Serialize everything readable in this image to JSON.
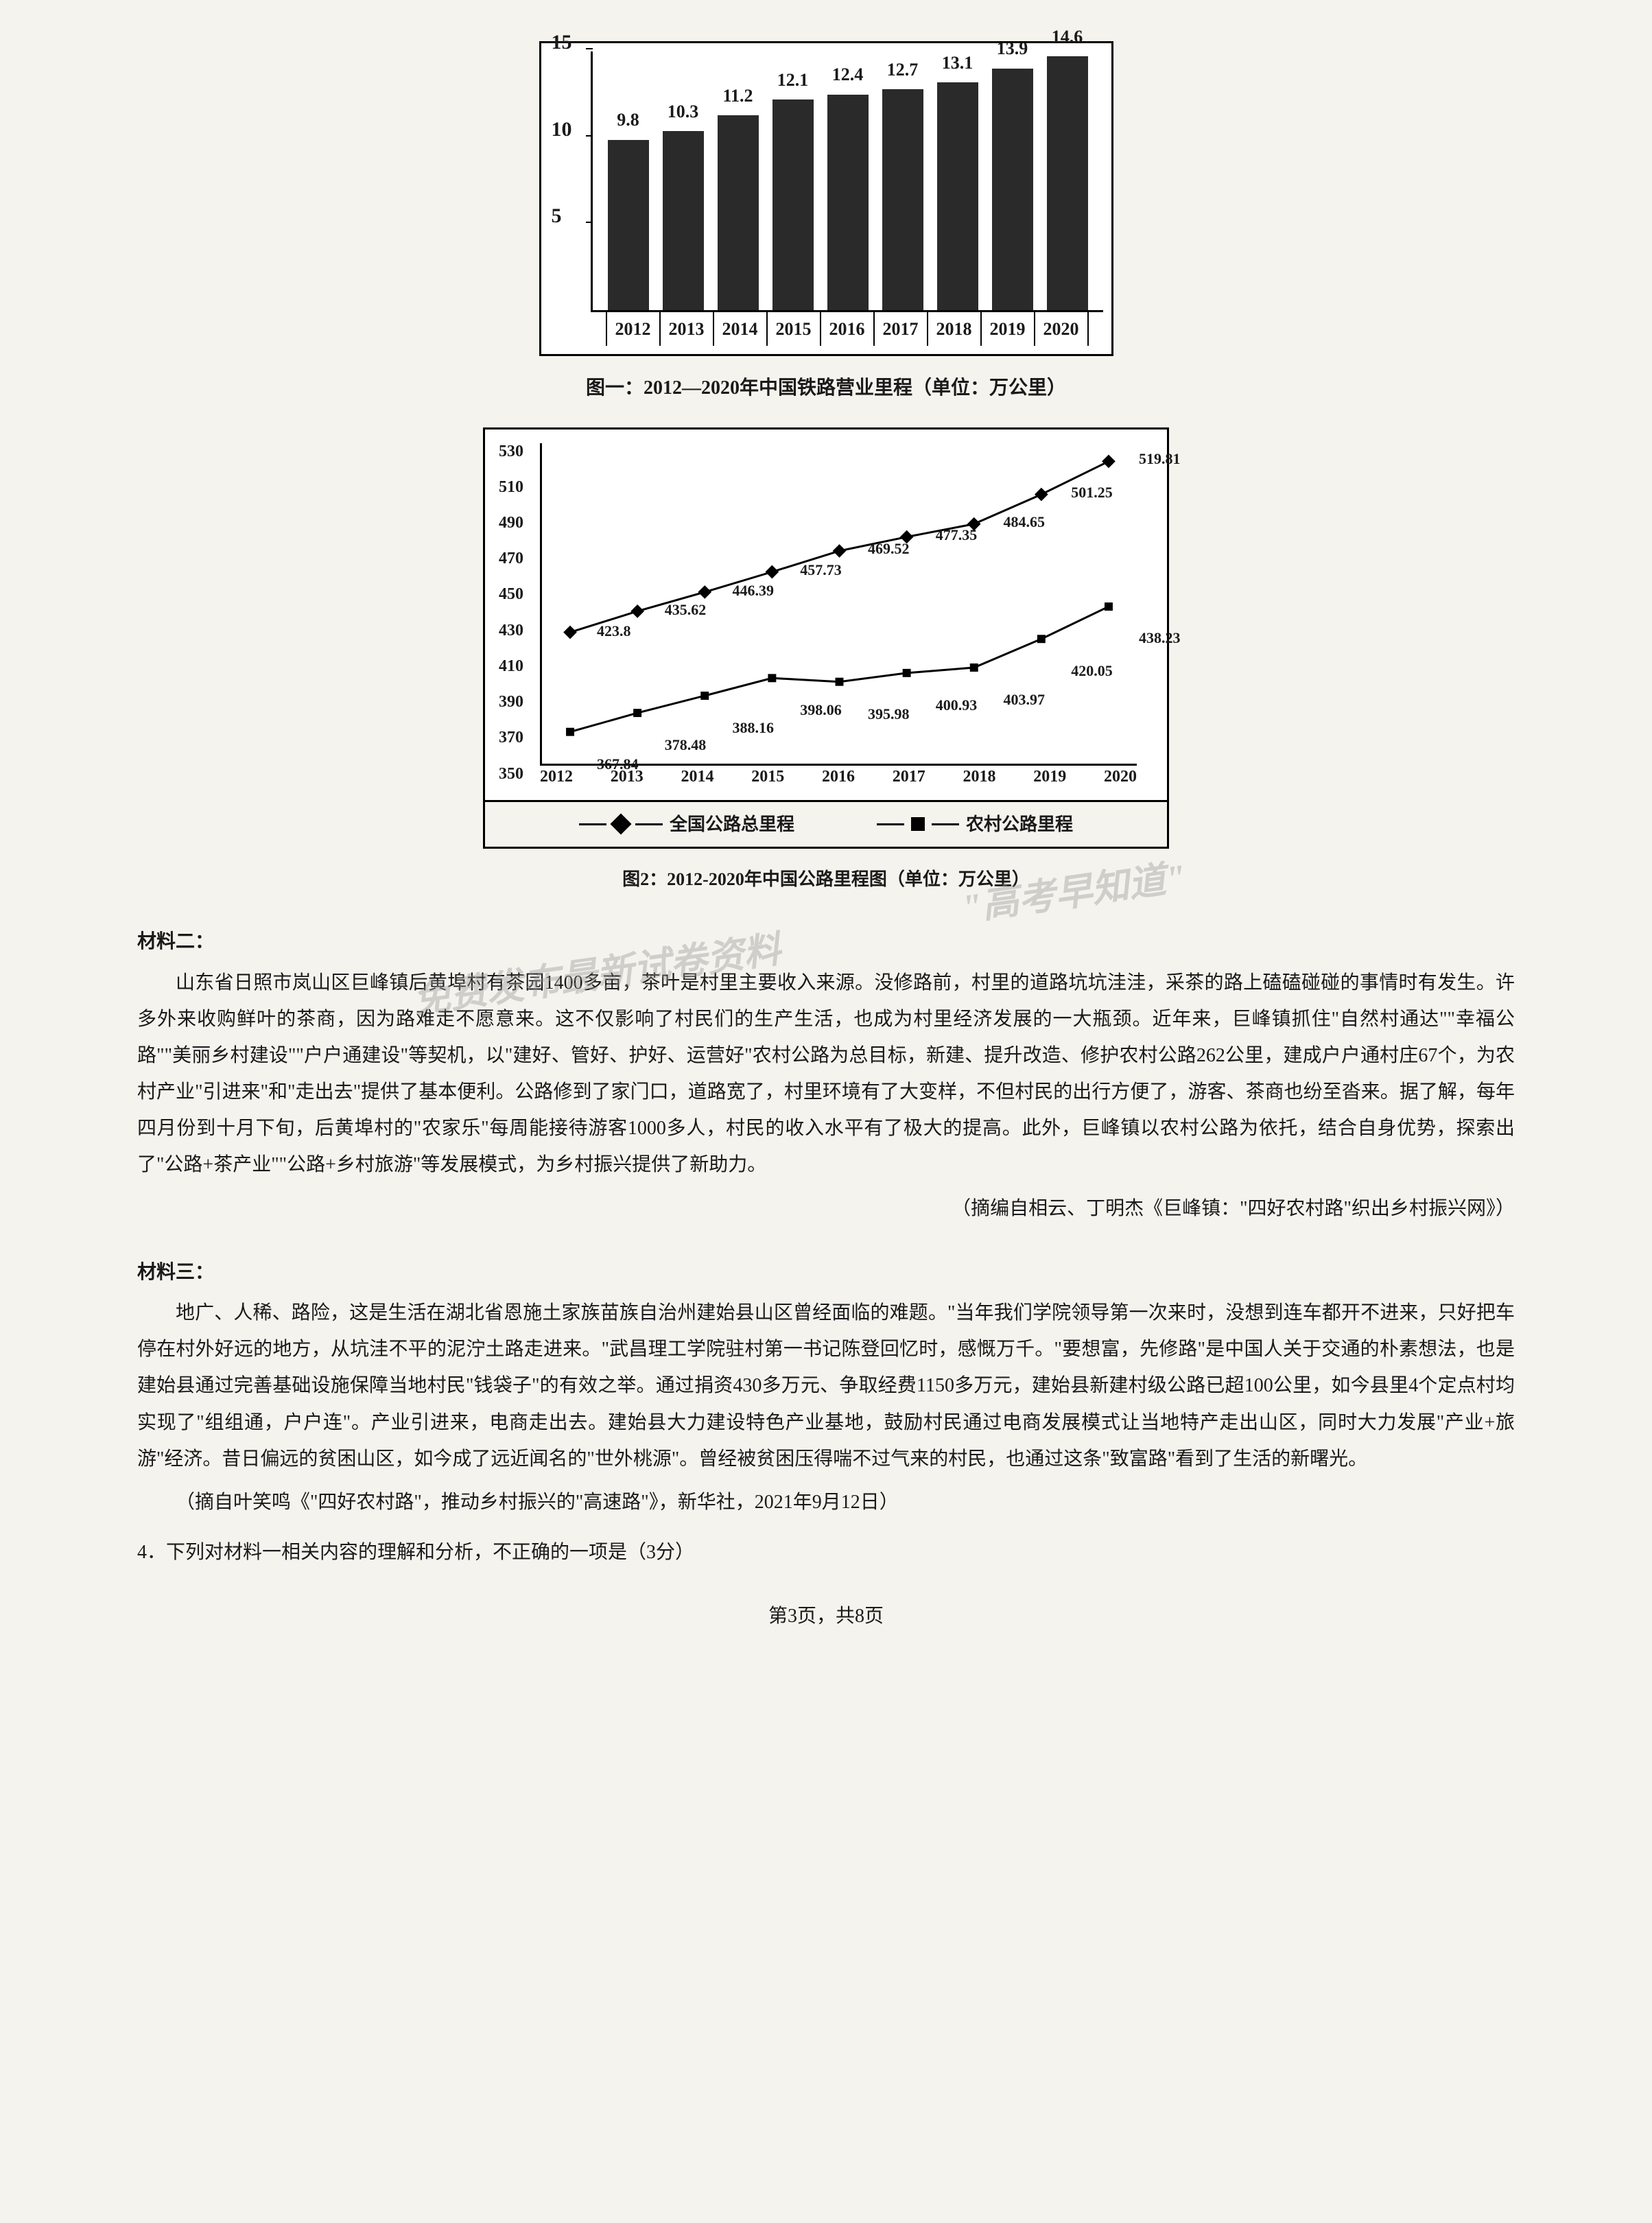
{
  "chart1": {
    "type": "bar",
    "caption": "图一：2012—2020年中国铁路营业里程（单位：万公里）",
    "categories": [
      "2012",
      "2013",
      "2014",
      "2015",
      "2016",
      "2017",
      "2018",
      "2019",
      "2020"
    ],
    "values": [
      9.8,
      10.3,
      11.2,
      12.1,
      12.4,
      12.7,
      13.1,
      13.9,
      14.6
    ],
    "ylim": [
      0,
      15
    ],
    "yticks": [
      5,
      10,
      15
    ],
    "bar_color": "#2a2a2a",
    "background_color": "#ffffff",
    "border_color": "#000000"
  },
  "chart2": {
    "type": "line",
    "caption": "图2：2012-2020年中国公路里程图（单位：万公里）",
    "categories": [
      "2012",
      "2013",
      "2014",
      "2015",
      "2016",
      "2017",
      "2018",
      "2019",
      "2020"
    ],
    "series": [
      {
        "name": "全国公路总里程",
        "marker": "diamond",
        "color": "#000000",
        "values": [
          423.8,
          435.62,
          446.39,
          457.73,
          469.52,
          477.35,
          484.65,
          501.25,
          519.81
        ]
      },
      {
        "name": "农村公路里程",
        "marker": "square",
        "color": "#000000",
        "values": [
          367.84,
          378.48,
          388.16,
          398.06,
          395.98,
          400.93,
          403.97,
          420.05,
          438.23
        ]
      }
    ],
    "ylim": [
      350,
      530
    ],
    "ytick_step": 20,
    "yticks": [
      350,
      370,
      390,
      410,
      430,
      450,
      470,
      490,
      510,
      530
    ],
    "background_color": "#ffffff",
    "line_color": "#000000",
    "grid": false
  },
  "material2": {
    "heading": "材料二：",
    "body": "山东省日照市岚山区巨峰镇后黄埠村有茶园1400多亩，茶叶是村里主要收入来源。没修路前，村里的道路坑坑洼洼，采茶的路上磕磕碰碰的事情时有发生。许多外来收购鲜叶的茶商，因为路难走不愿意来。这不仅影响了村民们的生产生活，也成为村里经济发展的一大瓶颈。近年来，巨峰镇抓住\"自然村通达\"\"幸福公路\"\"美丽乡村建设\"\"户户通建设\"等契机，以\"建好、管好、护好、运营好\"农村公路为总目标，新建、提升改造、修护农村公路262公里，建成户户通村庄67个，为农村产业\"引进来\"和\"走出去\"提供了基本便利。公路修到了家门口，道路宽了，村里环境有了大变样，不但村民的出行方便了，游客、茶商也纷至沓来。据了解，每年四月份到十月下旬，后黄埠村的\"农家乐\"每周能接待游客1000多人，村民的收入水平有了极大的提高。此外，巨峰镇以农村公路为依托，结合自身优势，探索出了\"公路+茶产业\"\"公路+乡村旅游\"等发展模式，为乡村振兴提供了新助力。",
    "source": "（摘编自相云、丁明杰《巨峰镇：\"四好农村路\"织出乡村振兴网》）"
  },
  "material3": {
    "heading": "材料三：",
    "body": "地广、人稀、路险，这是生活在湖北省恩施土家族苗族自治州建始县山区曾经面临的难题。\"当年我们学院领导第一次来时，没想到连车都开不进来，只好把车停在村外好远的地方，从坑洼不平的泥泞土路走进来。\"武昌理工学院驻村第一书记陈登回忆时，感慨万千。\"要想富，先修路\"是中国人关于交通的朴素想法，也是建始县通过完善基础设施保障当地村民\"钱袋子\"的有效之举。通过捐资430多万元、争取经费1150多万元，建始县新建村级公路已超100公里，如今县里4个定点村均实现了\"组组通，户户连\"。产业引进来，电商走出去。建始县大力建设特色产业基地，鼓励村民通过电商发展模式让当地特产走出山区，同时大力发展\"产业+旅游\"经济。昔日偏远的贫困山区，如今成了远近闻名的\"世外桃源\"。曾经被贫困压得喘不过气来的村民，也通过这条\"致富路\"看到了生活的新曙光。",
    "source": "（摘自叶笑鸣《\"四好农村路\"，推动乡村振兴的\"高速路\"》，新华社，2021年9月12日）"
  },
  "question4": {
    "text": "4．下列对材料一相关内容的理解和分析，不正确的一项是（3分）"
  },
  "footer": {
    "text": "第3页，共8页"
  },
  "watermark": {
    "line1": "\"高考早知道\"",
    "line2": "免费发布最新试卷资料"
  }
}
